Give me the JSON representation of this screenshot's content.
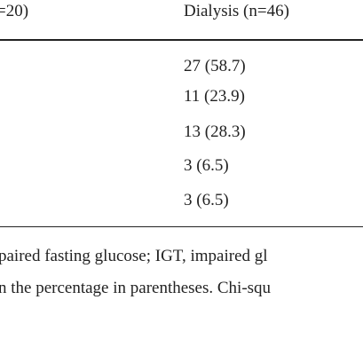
{
  "table": {
    "header": [
      "=20)",
      "Dialysis (n=46)"
    ],
    "rows": [
      [
        "27 (58.7)"
      ],
      [
        "11 (23.9)"
      ],
      [
        "13 (28.3)"
      ],
      [
        "3 (6.5)"
      ],
      [
        "3 (6.5)"
      ]
    ]
  },
  "footnote": [
    "paired fasting glucose; IGT, impaired gl",
    "n the percentage in parentheses. Chi-squ"
  ]
}
